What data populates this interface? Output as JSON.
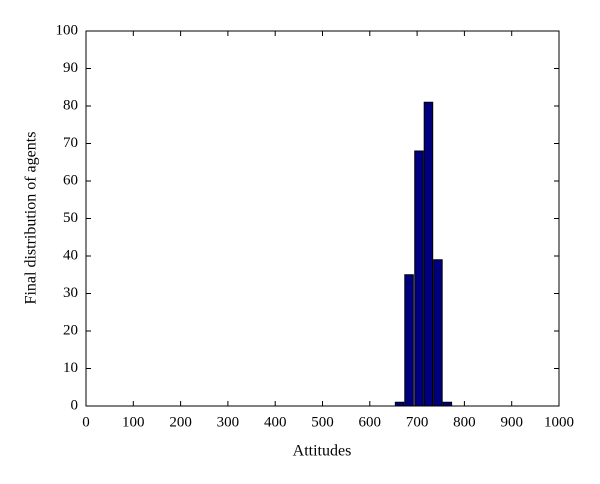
{
  "chart_data": {
    "type": "bar",
    "x": [
      663,
      683,
      704,
      724,
      744,
      764
    ],
    "values": [
      1,
      35,
      68,
      81,
      39,
      1
    ],
    "color": "#00007f",
    "xlabel": "Attitudes",
    "ylabel": "Final distribution of agents",
    "xlim": [
      0,
      1000
    ],
    "xticks": [
      0,
      100,
      200,
      300,
      400,
      500,
      600,
      700,
      800,
      900,
      1000
    ],
    "ylim": [
      0,
      100
    ],
    "yticks": [
      0,
      10,
      20,
      30,
      40,
      50,
      60,
      70,
      80,
      90,
      100
    ]
  }
}
